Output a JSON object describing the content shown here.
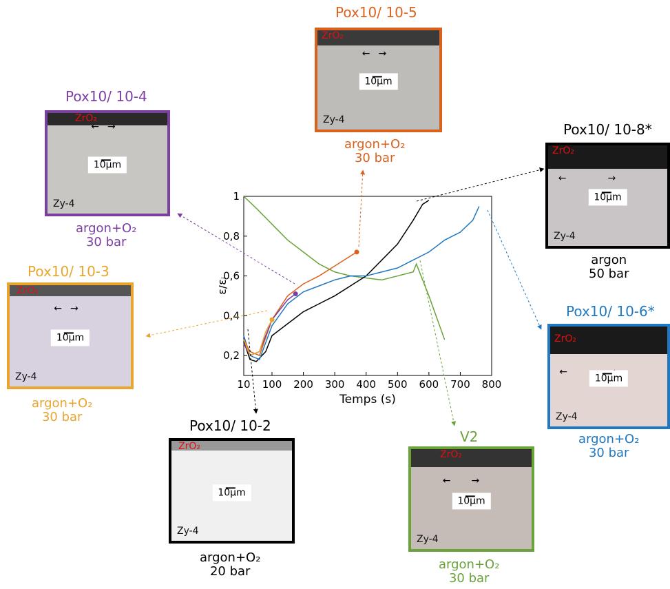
{
  "panels": {
    "p105": {
      "title": "Pox10/ 10-5",
      "cond1": "argon+O₂",
      "cond2": "30 bar",
      "color": "#d9621e"
    },
    "p104": {
      "title": "Pox10/ 10-4",
      "cond1": "argon+O₂",
      "cond2": "30 bar",
      "color": "#7b3fa0"
    },
    "p108": {
      "title": "Pox10/ 10-8*",
      "cond1": "argon",
      "cond2": "50 bar",
      "color": "#000000"
    },
    "p103": {
      "title": "Pox10/ 10-3",
      "cond1": "argon+O₂",
      "cond2": "30 bar",
      "color": "#e8a630"
    },
    "p106": {
      "title": "Pox10/ 10-6*",
      "cond1": "argon+O₂",
      "cond2": "30 bar",
      "color": "#1f78c0"
    },
    "p102": {
      "title": "Pox10/ 10-2",
      "cond1": "argon+O₂",
      "cond2": "20 bar",
      "color": "#000000"
    },
    "v2": {
      "title": "V2",
      "cond1": "argon+O₂",
      "cond2": "30 bar",
      "color": "#6aa33a"
    }
  },
  "micro_labels": {
    "oxide": "ZrO₂",
    "matrix": "Zy-4",
    "scale": "10μm"
  },
  "chart_data": {
    "type": "line",
    "xlabel": "Temps (s)",
    "ylabel": "ε̇/ε̇ᵢ",
    "xticks": [
      10,
      100,
      200,
      300,
      400,
      500,
      600,
      700,
      800
    ],
    "yticks": [
      0.2,
      0.4,
      0.6,
      0.8,
      1
    ],
    "ytick_labels": [
      "0,2",
      "0,4",
      "0,6",
      "0,8",
      "1"
    ],
    "xlim": [
      10,
      800
    ],
    "ylim": [
      0.1,
      1.0
    ],
    "series": [
      {
        "color": "#6aa33a",
        "x": [
          10,
          50,
          100,
          150,
          200,
          250,
          300,
          350,
          400,
          450,
          500,
          550,
          560,
          600,
          650
        ],
        "y": [
          1.0,
          0.94,
          0.86,
          0.78,
          0.72,
          0.66,
          0.62,
          0.6,
          0.59,
          0.58,
          0.6,
          0.62,
          0.66,
          0.5,
          0.28
        ]
      },
      {
        "color": "#000000",
        "x": [
          10,
          30,
          50,
          80,
          100,
          150,
          200,
          250,
          300,
          350,
          400,
          450,
          500,
          550,
          580,
          600
        ],
        "y": [
          0.27,
          0.18,
          0.17,
          0.22,
          0.3,
          0.36,
          0.42,
          0.46,
          0.5,
          0.55,
          0.6,
          0.68,
          0.76,
          0.88,
          0.96,
          0.98
        ]
      },
      {
        "color": "#1f78c0",
        "x": [
          10,
          30,
          60,
          100,
          150,
          200,
          250,
          300,
          350,
          400,
          450,
          500,
          550,
          600,
          650,
          700,
          740,
          760
        ],
        "y": [
          0.3,
          0.2,
          0.18,
          0.35,
          0.46,
          0.52,
          0.55,
          0.58,
          0.6,
          0.6,
          0.62,
          0.64,
          0.68,
          0.72,
          0.78,
          0.82,
          0.88,
          0.95
        ]
      },
      {
        "color": "#d9621e",
        "x": [
          10,
          30,
          60,
          100,
          150,
          200,
          250,
          300,
          350,
          370
        ],
        "y": [
          0.28,
          0.22,
          0.2,
          0.38,
          0.5,
          0.56,
          0.6,
          0.65,
          0.7,
          0.72
        ]
      },
      {
        "color": "#7b3fa0",
        "x": [
          10,
          30,
          60,
          100,
          150,
          175
        ],
        "y": [
          0.26,
          0.2,
          0.22,
          0.38,
          0.48,
          0.51
        ]
      },
      {
        "color": "#e8a630",
        "x": [
          10,
          30,
          60,
          80,
          100
        ],
        "y": [
          0.28,
          0.2,
          0.22,
          0.32,
          0.38
        ]
      }
    ]
  }
}
